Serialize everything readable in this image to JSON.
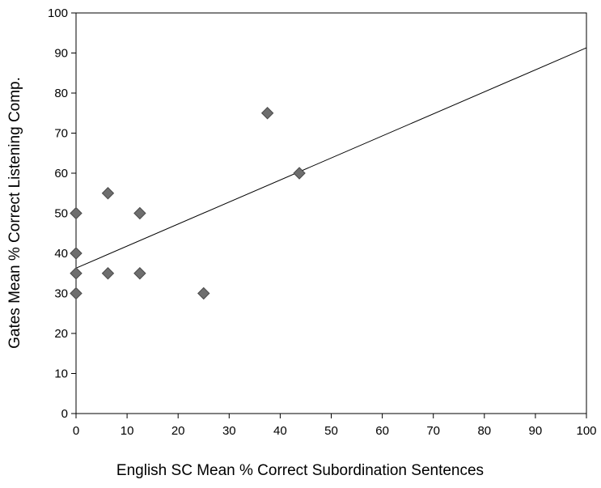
{
  "chart_data": {
    "type": "scatter",
    "title": "",
    "xlabel": "English SC Mean % Correct Subordination Sentences",
    "ylabel": "Gates Mean % Correct Listening Comp.",
    "xlim": [
      0,
      100
    ],
    "ylim": [
      0,
      100
    ],
    "x_ticks": [
      0,
      10,
      20,
      30,
      40,
      50,
      60,
      70,
      80,
      90,
      100
    ],
    "y_ticks": [
      0,
      10,
      20,
      30,
      40,
      50,
      60,
      70,
      80,
      90,
      100
    ],
    "grid": false,
    "legend": "none",
    "marker_color": "#6e6e6e",
    "points": [
      {
        "x": 0,
        "y": 50
      },
      {
        "x": 0,
        "y": 40
      },
      {
        "x": 0,
        "y": 35
      },
      {
        "x": 0,
        "y": 30
      },
      {
        "x": 6.25,
        "y": 55
      },
      {
        "x": 6.25,
        "y": 35
      },
      {
        "x": 12.5,
        "y": 50
      },
      {
        "x": 12.5,
        "y": 35
      },
      {
        "x": 25,
        "y": 30
      },
      {
        "x": 37.5,
        "y": 75
      },
      {
        "x": 43.75,
        "y": 60
      }
    ],
    "trendline": {
      "x": [
        0,
        100
      ],
      "y": [
        36.3,
        91.3
      ]
    }
  }
}
